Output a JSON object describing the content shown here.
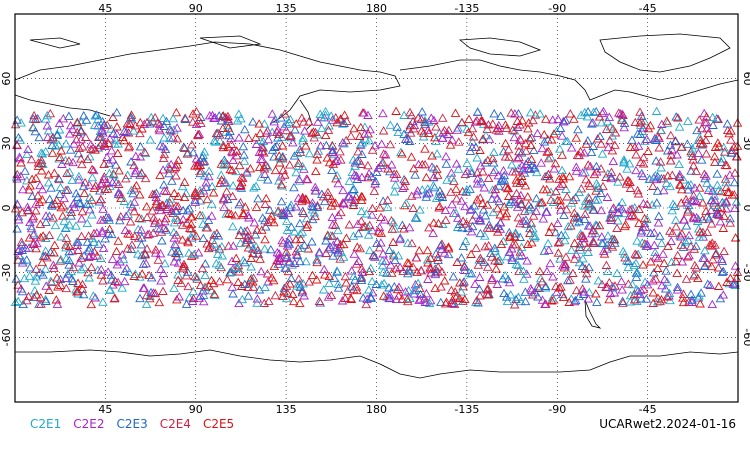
{
  "top_axis_labels": [
    "45",
    "90",
    "135",
    "180",
    "-135",
    "-90",
    "-45"
  ],
  "bottom_axis_labels": [
    "45",
    "90",
    "135",
    "180",
    "-135",
    "-90",
    "-45"
  ],
  "left_axis_labels": [
    "60",
    "30",
    "0",
    "-30",
    "-60"
  ],
  "right_axis_labels": [
    "60",
    "30",
    "0",
    "-30",
    "-60"
  ],
  "legend": [
    {
      "label": "C2E1",
      "color": "#22aacc"
    },
    {
      "label": "C2E2",
      "color": "#aa22cc"
    },
    {
      "label": "C2E3",
      "color": "#2266cc"
    },
    {
      "label": "C2E4",
      "color": "#cc2244"
    },
    {
      "label": "C2E5",
      "color": "#dd1111"
    }
  ],
  "dataset_label": "UCARwet2.2024-01-16",
  "chart_data": {
    "type": "scatter",
    "projection": "cylindrical equidistant, centered 180",
    "lon_range": [
      0,
      360
    ],
    "lat_range": [
      -90,
      90
    ],
    "grid": true,
    "marker": "open triangle",
    "occultation_lat_band": [
      -45,
      45
    ],
    "series": [
      {
        "name": "C2E1",
        "color": "#22aacc"
      },
      {
        "name": "C2E2",
        "color": "#aa22cc"
      },
      {
        "name": "C2E3",
        "color": "#2266cc"
      },
      {
        "name": "C2E4",
        "color": "#cc2244"
      },
      {
        "name": "C2E5",
        "color": "#dd1111"
      }
    ]
  }
}
